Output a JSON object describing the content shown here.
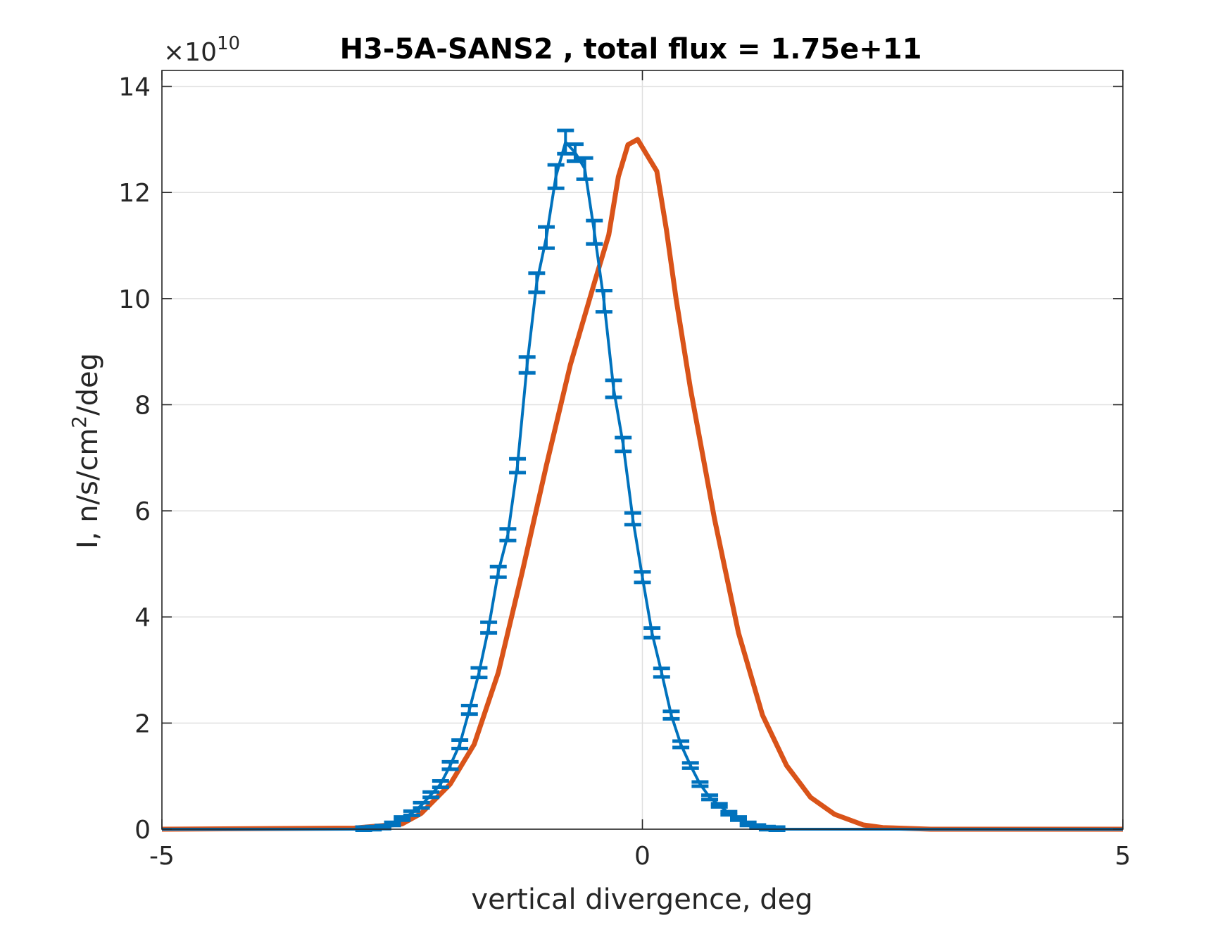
{
  "chart_data": {
    "type": "line",
    "title": "H3-5A-SANS2 , total flux =  1.75e+11",
    "xlabel": "vertical divergence, deg",
    "ylabel_main": "I, n/s/cm",
    "ylabel_sup": "2",
    "ylabel_tail": "/deg",
    "exponent_base": "×10",
    "exponent_power": "10",
    "xlim": [
      -5,
      5
    ],
    "ylim": [
      0,
      14.3
    ],
    "x_ticks": [
      -5,
      0,
      5
    ],
    "y_ticks": [
      0,
      2,
      4,
      6,
      8,
      10,
      12,
      14
    ],
    "grid": true,
    "colors": {
      "fit": "#d95319",
      "data": "#0072bd",
      "grid": "#e0e0e0",
      "axis": "#262626"
    },
    "series": [
      {
        "type": "line",
        "x": [
          -5,
          -3.0,
          -2.5,
          -2.3,
          -2.0,
          -1.75,
          -1.5,
          -1.25,
          -1.0,
          -0.75,
          -0.5,
          -0.35,
          -0.25,
          -0.15,
          -0.05,
          0.0,
          0.05,
          0.15,
          0.25,
          0.35,
          0.5,
          0.75,
          1.0,
          1.25,
          1.5,
          1.75,
          2.0,
          2.3,
          2.5,
          3.0,
          5
        ],
        "y": [
          0,
          0.02,
          0.1,
          0.3,
          0.85,
          1.6,
          2.95,
          4.85,
          6.85,
          8.75,
          10.3,
          11.2,
          12.3,
          12.9,
          13.0,
          12.85,
          12.7,
          12.4,
          11.3,
          10.0,
          8.3,
          5.85,
          3.7,
          2.15,
          1.2,
          0.6,
          0.28,
          0.08,
          0.03,
          0.0,
          0
        ]
      },
      {
        "type": "errorbar",
        "x": [
          -5,
          -4.9,
          -4.8,
          -4.7,
          -4.6,
          -4.5,
          -4.4,
          -4.3,
          -4.2,
          -4.1,
          -4.0,
          -3.9,
          -3.8,
          -3.7,
          -3.6,
          -3.5,
          -3.4,
          -3.3,
          -3.2,
          -3.1,
          -3.0,
          -2.9,
          -2.8,
          -2.7,
          -2.6,
          -2.5,
          -2.4,
          -2.3,
          -2.2,
          -2.1,
          -2.0,
          -1.9,
          -1.8,
          -1.7,
          -1.6,
          -1.5,
          -1.4,
          -1.3,
          -1.2,
          -1.1,
          -1.0,
          -0.9,
          -0.8,
          -0.7,
          -0.6,
          -0.5,
          -0.4,
          -0.3,
          -0.2,
          -0.1,
          0.0,
          0.1,
          0.2,
          0.3,
          0.4,
          0.5,
          0.6,
          0.7,
          0.8,
          0.9,
          1.0,
          1.1,
          1.2,
          1.3,
          1.4,
          1.5,
          1.6,
          1.7,
          1.8,
          1.9,
          2.0,
          2.1,
          2.2,
          2.3,
          2.4,
          2.5,
          2.6,
          2.7,
          2.8,
          2.9,
          3.0,
          3.1,
          3.2,
          3.3,
          3.4,
          3.5,
          3.6,
          3.7,
          3.8,
          3.9,
          4.0,
          4.1,
          4.2,
          4.3,
          4.4,
          4.5,
          4.6,
          4.7,
          4.8,
          4.9,
          5.0
        ],
        "y": [
          0,
          0,
          0,
          0,
          0,
          0,
          0,
          0,
          0,
          0,
          0,
          0,
          0,
          0,
          0,
          0,
          0,
          0,
          0,
          0,
          0.0,
          0.01,
          0.02,
          0.04,
          0.1,
          0.2,
          0.3,
          0.45,
          0.65,
          0.85,
          1.2,
          1.6,
          2.25,
          2.95,
          3.8,
          4.85,
          5.55,
          6.85,
          8.75,
          10.3,
          11.15,
          12.3,
          12.95,
          12.75,
          12.45,
          11.25,
          9.95,
          8.3,
          7.25,
          5.85,
          4.75,
          3.7,
          2.95,
          2.15,
          1.6,
          1.2,
          0.85,
          0.6,
          0.45,
          0.3,
          0.2,
          0.1,
          0.05,
          0.02,
          0.01,
          0.0,
          0,
          0,
          0,
          0,
          0,
          0,
          0,
          0,
          0,
          0,
          0,
          0,
          0,
          0,
          0,
          0,
          0,
          0,
          0,
          0,
          0,
          0,
          0,
          0,
          0,
          0,
          0,
          0,
          0,
          0,
          0,
          0,
          0,
          0,
          0
        ],
        "err": [
          0,
          0,
          0,
          0,
          0,
          0,
          0,
          0,
          0,
          0,
          0,
          0,
          0,
          0,
          0,
          0,
          0,
          0,
          0,
          0,
          0,
          0,
          0,
          0,
          0.02,
          0.03,
          0.04,
          0.05,
          0.05,
          0.06,
          0.07,
          0.08,
          0.08,
          0.09,
          0.1,
          0.1,
          0.11,
          0.13,
          0.15,
          0.18,
          0.2,
          0.22,
          0.22,
          0.16,
          0.2,
          0.22,
          0.2,
          0.16,
          0.13,
          0.11,
          0.1,
          0.09,
          0.08,
          0.07,
          0.06,
          0.05,
          0.04,
          0.04,
          0.03,
          0.03,
          0.02,
          0.02,
          0.01,
          0,
          0,
          0,
          0,
          0,
          0,
          0,
          0,
          0,
          0,
          0,
          0,
          0,
          0,
          0,
          0,
          0,
          0,
          0,
          0,
          0,
          0,
          0,
          0,
          0,
          0,
          0,
          0,
          0,
          0,
          0,
          0,
          0,
          0,
          0,
          0,
          0,
          0
        ]
      }
    ]
  }
}
